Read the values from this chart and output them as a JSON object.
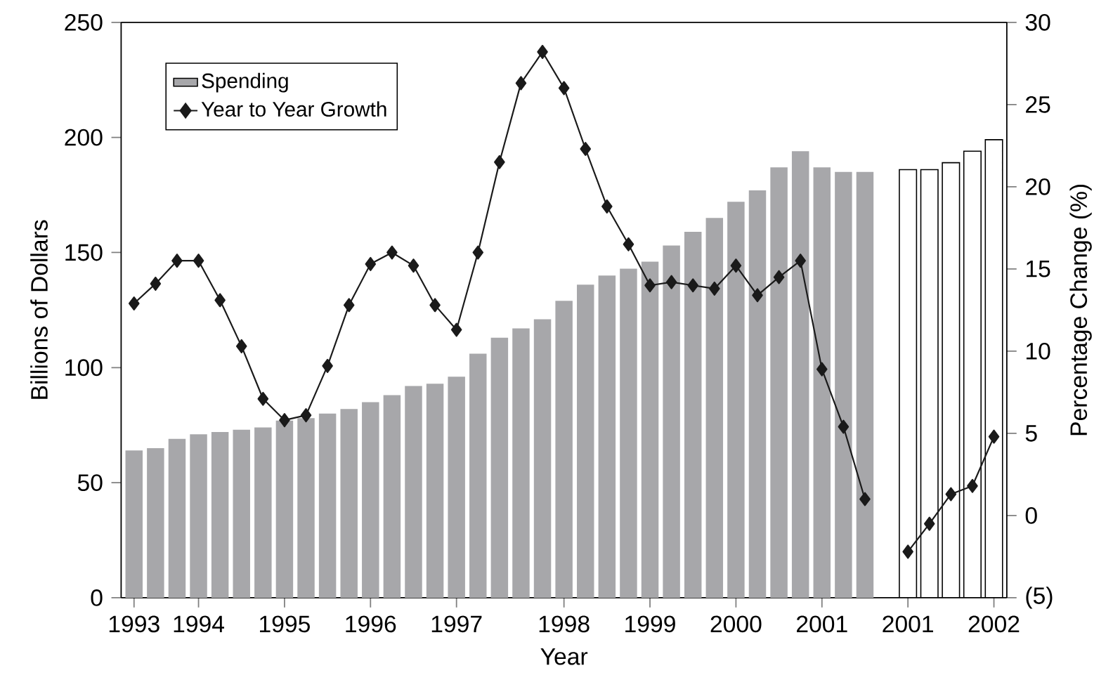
{
  "chart_data": {
    "type": "bar",
    "xlabel": "Year",
    "ylabel": "Billions of Dollars",
    "y2label": "Percentage Change (%)",
    "categories": [
      "1993",
      null,
      null,
      "1994",
      null,
      null,
      null,
      "1995",
      null,
      null,
      null,
      "1996",
      null,
      null,
      null,
      "1997",
      null,
      null,
      null,
      null,
      "1998",
      null,
      null,
      null,
      "1999",
      null,
      null,
      null,
      "2000",
      null,
      null,
      null,
      "2001",
      null,
      null,
      null,
      "2001",
      null,
      null,
      null,
      "2002"
    ],
    "ylim": [
      0,
      250
    ],
    "yticks": [
      0,
      50,
      100,
      150,
      200,
      250
    ],
    "y2lim": [
      -5,
      30
    ],
    "y2ticks": [
      {
        "value": -5,
        "label": "(5)"
      },
      0,
      5,
      10,
      15,
      20,
      25,
      30
    ],
    "legend": "top left",
    "marker": "diamond",
    "series": [
      {
        "name": "Spending",
        "color": "#a7a7aa",
        "values": [
          64,
          65,
          69,
          71,
          72,
          73,
          74,
          77,
          78,
          80,
          82,
          85,
          88,
          92,
          93,
          96,
          106,
          113,
          117,
          121,
          129,
          136,
          140,
          143,
          146,
          153,
          159,
          165,
          172,
          177,
          187,
          194,
          187,
          185,
          185,
          null,
          null,
          null,
          null,
          null,
          null
        ]
      },
      {
        "color": "#ffffff",
        "values": [
          null,
          null,
          null,
          null,
          null,
          null,
          null,
          null,
          null,
          null,
          null,
          null,
          null,
          null,
          null,
          null,
          null,
          null,
          null,
          null,
          null,
          null,
          null,
          null,
          null,
          null,
          null,
          null,
          null,
          null,
          null,
          null,
          null,
          null,
          null,
          null,
          186,
          186,
          189,
          194,
          199
        ]
      },
      {
        "name": "Year to Year Growth",
        "type": "line",
        "axis": "y2",
        "color": "#1a1a1a",
        "values": [
          12.9,
          14.1,
          15.5,
          15.5,
          13.1,
          10.3,
          7.1,
          5.8,
          6.1,
          9.1,
          12.8,
          15.3,
          16.0,
          15.2,
          12.8,
          11.3,
          16.0,
          21.5,
          26.3,
          28.2,
          26.0,
          22.3,
          18.8,
          16.5,
          14.0,
          14.2,
          14.0,
          13.8,
          15.2,
          13.4,
          14.5,
          15.5,
          8.9,
          5.4,
          1.0,
          null,
          null,
          null,
          null,
          null,
          null
        ]
      },
      {
        "type": "line",
        "axis": "y2",
        "color": "#1a1a1a",
        "values": [
          null,
          null,
          null,
          null,
          null,
          null,
          null,
          null,
          null,
          null,
          null,
          null,
          null,
          null,
          null,
          null,
          null,
          null,
          null,
          null,
          null,
          null,
          null,
          null,
          null,
          null,
          null,
          null,
          null,
          null,
          null,
          null,
          null,
          null,
          null,
          null,
          -2.2,
          -0.5,
          1.3,
          1.8,
          4.8
        ]
      }
    ]
  }
}
